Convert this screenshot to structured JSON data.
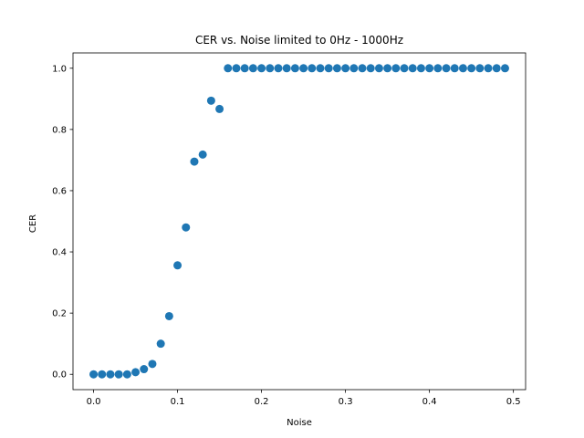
{
  "chart_data": {
    "type": "scatter",
    "title": "CER vs. Noise limited to 0Hz - 1000Hz",
    "xlabel": "Noise",
    "ylabel": "CER",
    "xlim": [
      -0.0245,
      0.5145
    ],
    "ylim": [
      -0.05,
      1.05
    ],
    "xticks": [
      0.0,
      0.1,
      0.2,
      0.3,
      0.4,
      0.5
    ],
    "xtick_labels": [
      "0.0",
      "0.1",
      "0.2",
      "0.3",
      "0.4",
      "0.5"
    ],
    "yticks": [
      0.0,
      0.2,
      0.4,
      0.6,
      0.8,
      1.0
    ],
    "ytick_labels": [
      "0.0",
      "0.2",
      "0.4",
      "0.6",
      "0.8",
      "1.0"
    ],
    "grid": false,
    "marker_color": "#1f77b4",
    "series": [
      {
        "x": [
          0.0,
          0.01,
          0.02,
          0.03,
          0.04,
          0.05,
          0.06,
          0.07,
          0.08,
          0.09,
          0.1,
          0.11,
          0.12,
          0.13,
          0.14,
          0.15,
          0.16,
          0.17,
          0.18,
          0.19,
          0.2,
          0.21,
          0.22,
          0.23,
          0.24,
          0.25,
          0.26,
          0.27,
          0.28,
          0.29,
          0.3,
          0.31,
          0.32,
          0.33,
          0.34,
          0.35,
          0.36,
          0.37,
          0.38,
          0.39,
          0.4,
          0.41,
          0.42,
          0.43,
          0.44,
          0.45,
          0.46,
          0.47,
          0.48,
          0.49
        ],
        "y": [
          0.0,
          0.0,
          0.0,
          0.0,
          0.0,
          0.007,
          0.017,
          0.034,
          0.1,
          0.19,
          0.356,
          0.48,
          0.695,
          0.718,
          0.894,
          0.867,
          1.0,
          1.0,
          1.0,
          1.0,
          1.0,
          1.0,
          1.0,
          1.0,
          1.0,
          1.0,
          1.0,
          1.0,
          1.0,
          1.0,
          1.0,
          1.0,
          1.0,
          1.0,
          1.0,
          1.0,
          1.0,
          1.0,
          1.0,
          1.0,
          1.0,
          1.0,
          1.0,
          1.0,
          1.0,
          1.0,
          1.0,
          1.0,
          1.0,
          1.0
        ]
      }
    ]
  }
}
